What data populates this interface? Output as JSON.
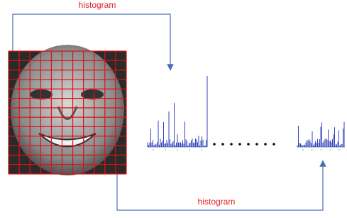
{
  "arrows": {
    "top": {
      "label": "histogram"
    },
    "bottom": {
      "label": "histogram"
    }
  }
}
